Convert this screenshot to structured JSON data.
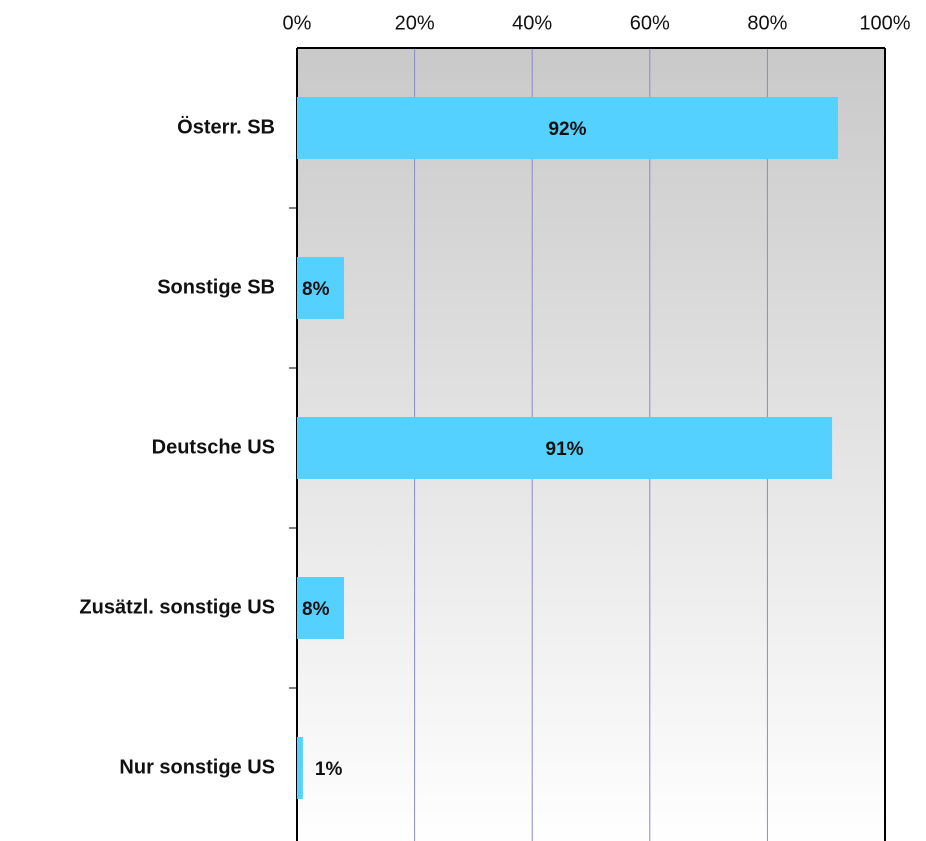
{
  "chart_data": {
    "type": "bar",
    "orientation": "horizontal",
    "categories": [
      "Österr. SB",
      "Sonstige SB",
      "Deutsche US",
      "Zusätzl. sonstige US",
      "Nur sonstige US"
    ],
    "values": [
      92,
      8,
      91,
      8,
      1
    ],
    "value_labels": [
      "92%",
      "8%",
      "91%",
      "8%",
      "1%"
    ],
    "color": "#54d1ff",
    "xlim": [
      0,
      100
    ],
    "xticks": [
      {
        "value": 0,
        "label": "0%"
      },
      {
        "value": 20,
        "label": "20%"
      },
      {
        "value": 40,
        "label": "40%"
      },
      {
        "value": 60,
        "label": "60%"
      },
      {
        "value": 80,
        "label": "80%"
      },
      {
        "value": 100,
        "label": "100%"
      }
    ],
    "grid": true
  }
}
